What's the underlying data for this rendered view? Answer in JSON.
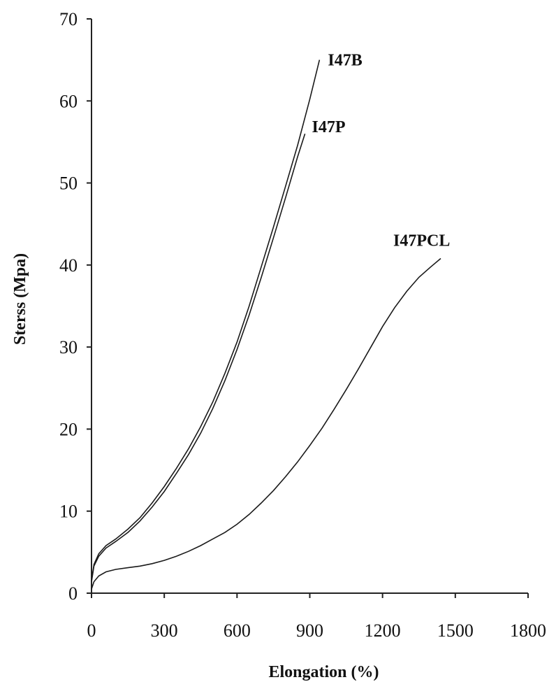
{
  "chart_data": {
    "type": "line",
    "title": "",
    "xlabel": "Elongation (%)",
    "ylabel": "Sterss (Mpa)",
    "xlim": [
      0,
      1800
    ],
    "ylim": [
      0,
      70
    ],
    "xticks": [
      0,
      300,
      600,
      900,
      1200,
      1500,
      1800
    ],
    "yticks": [
      0,
      10,
      20,
      30,
      40,
      50,
      60,
      70
    ],
    "grid": false,
    "legend": "none (series labelled at line ends)",
    "series": [
      {
        "name": "I47B",
        "x": [
          0,
          10,
          30,
          60,
          100,
          150,
          200,
          250,
          300,
          350,
          400,
          450,
          500,
          550,
          600,
          650,
          700,
          750,
          800,
          850,
          900,
          940
        ],
        "y": [
          1.5,
          3.5,
          4.8,
          5.8,
          6.6,
          7.8,
          9.2,
          11.0,
          13.0,
          15.2,
          17.6,
          20.3,
          23.3,
          26.8,
          30.6,
          35.0,
          39.8,
          44.6,
          49.6,
          54.6,
          60.2,
          65.0
        ]
      },
      {
        "name": "I47P",
        "x": [
          0,
          10,
          30,
          60,
          100,
          150,
          200,
          250,
          300,
          350,
          400,
          450,
          500,
          550,
          600,
          650,
          700,
          750,
          800,
          850,
          880
        ],
        "y": [
          1.4,
          3.3,
          4.5,
          5.5,
          6.3,
          7.4,
          8.8,
          10.5,
          12.4,
          14.6,
          16.9,
          19.5,
          22.5,
          25.9,
          29.7,
          33.9,
          38.5,
          43.3,
          48.2,
          53.2,
          56.0
        ]
      },
      {
        "name": "I47PCL",
        "x": [
          0,
          10,
          30,
          60,
          100,
          150,
          200,
          250,
          300,
          350,
          400,
          450,
          500,
          550,
          600,
          650,
          700,
          750,
          800,
          850,
          900,
          950,
          1000,
          1050,
          1100,
          1150,
          1200,
          1250,
          1300,
          1350,
          1400,
          1440
        ],
        "y": [
          0.5,
          1.4,
          2.1,
          2.6,
          2.9,
          3.1,
          3.3,
          3.6,
          4.0,
          4.5,
          5.1,
          5.8,
          6.6,
          7.4,
          8.4,
          9.6,
          11.0,
          12.5,
          14.2,
          16.0,
          18.0,
          20.1,
          22.4,
          24.8,
          27.3,
          29.9,
          32.5,
          34.8,
          36.8,
          38.5,
          39.8,
          40.8
        ]
      }
    ]
  }
}
